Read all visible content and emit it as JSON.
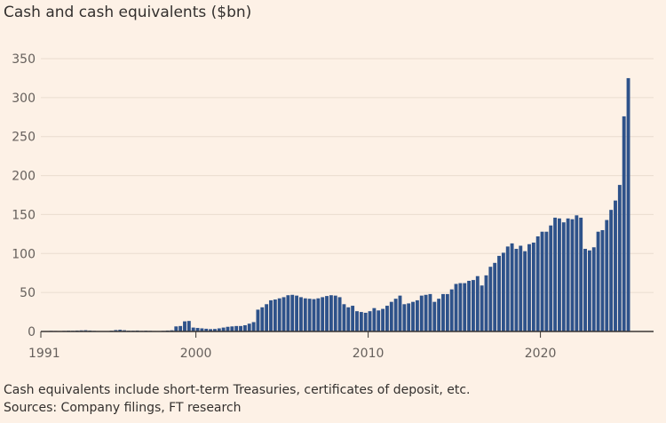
{
  "chart_data": {
    "type": "bar",
    "title": "Cash and cash equivalents ($bn)",
    "xlabel": "",
    "ylabel": "",
    "ylim": [
      0,
      350
    ],
    "yticks": [
      "0",
      "50",
      "100",
      "150",
      "200",
      "250",
      "300",
      "350"
    ],
    "xticks": [
      "1991",
      "2000",
      "2010",
      "2020"
    ],
    "grid": true,
    "legend": "none",
    "bar_color": "#2e528a",
    "frequency": "quarterly",
    "x_start": "1991 Q1",
    "values": [
      0.5,
      0.6,
      0.8,
      0.7,
      0.6,
      0.8,
      1.0,
      0.9,
      1.2,
      1.4,
      1.6,
      1.2,
      0.8,
      0.6,
      0.5,
      0.4,
      1.0,
      1.8,
      2.2,
      1.6,
      1.0,
      1.0,
      1.2,
      0.8,
      1.0,
      0.8,
      0.6,
      0.5,
      0.8,
      1.2,
      1.5,
      6.5,
      7.0,
      13.0,
      13.5,
      5.0,
      4.5,
      4.0,
      3.5,
      3.0,
      3.2,
      4.0,
      5.0,
      6.0,
      6.5,
      7.0,
      7.0,
      8.0,
      10.0,
      12.0,
      28.0,
      31.0,
      35.0,
      40.0,
      41.0,
      42.5,
      44.0,
      46.5,
      47.0,
      46.0,
      44.0,
      42.5,
      42.0,
      41.5,
      42.5,
      44.0,
      45.5,
      46.5,
      46.0,
      44.0,
      35.0,
      31.0,
      33.0,
      26.0,
      25.0,
      24.0,
      26.0,
      30.0,
      27.0,
      29.0,
      33.0,
      38.0,
      42.0,
      46.0,
      35.0,
      36.0,
      38.0,
      40.0,
      46.0,
      47.0,
      48.0,
      38.0,
      42.0,
      48.0,
      48.0,
      54.0,
      61.0,
      62.0,
      62.0,
      65.0,
      66.0,
      71.0,
      59.0,
      72.0,
      83.0,
      88.0,
      97.0,
      101.0,
      109.0,
      113.0,
      106.0,
      110.0,
      103.0,
      112.0,
      114.0,
      122.0,
      128.0,
      128.0,
      136.0,
      146.0,
      145.0,
      140.0,
      145.0,
      144.0,
      149.0,
      146.0,
      106.0,
      104.0,
      108.0,
      128.0,
      130.0,
      143.0,
      156.0,
      168.0,
      188.0,
      276.0,
      325.0
    ]
  }
}
